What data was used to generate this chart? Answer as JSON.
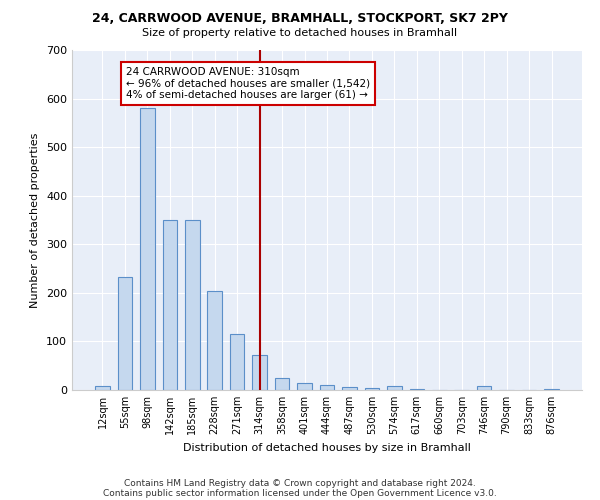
{
  "title_line1": "24, CARRWOOD AVENUE, BRAMHALL, STOCKPORT, SK7 2PY",
  "title_line2": "Size of property relative to detached houses in Bramhall",
  "xlabel": "Distribution of detached houses by size in Bramhall",
  "ylabel": "Number of detached properties",
  "bar_color": "#c5d8ee",
  "bar_edge_color": "#5b8fc9",
  "background_color": "#e8eef8",
  "grid_color": "#ffffff",
  "categories": [
    "12sqm",
    "55sqm",
    "98sqm",
    "142sqm",
    "185sqm",
    "228sqm",
    "271sqm",
    "314sqm",
    "358sqm",
    "401sqm",
    "444sqm",
    "487sqm",
    "530sqm",
    "574sqm",
    "617sqm",
    "660sqm",
    "703sqm",
    "746sqm",
    "790sqm",
    "833sqm",
    "876sqm"
  ],
  "bar_heights": [
    8,
    233,
    580,
    350,
    350,
    203,
    115,
    72,
    25,
    15,
    10,
    7,
    5,
    8,
    3,
    0,
    0,
    8,
    0,
    0,
    3
  ],
  "vline_index": 7,
  "annotation_text": "24 CARRWOOD AVENUE: 310sqm\n← 96% of detached houses are smaller (1,542)\n4% of semi-detached houses are larger (61) →",
  "annotation_box_color": "#ffffff",
  "annotation_box_edge_color": "#cc0000",
  "vline_color": "#aa0000",
  "footnote_line1": "Contains HM Land Registry data © Crown copyright and database right 2024.",
  "footnote_line2": "Contains public sector information licensed under the Open Government Licence v3.0.",
  "ylim": [
    0,
    700
  ],
  "yticks": [
    0,
    100,
    200,
    300,
    400,
    500,
    600,
    700
  ]
}
